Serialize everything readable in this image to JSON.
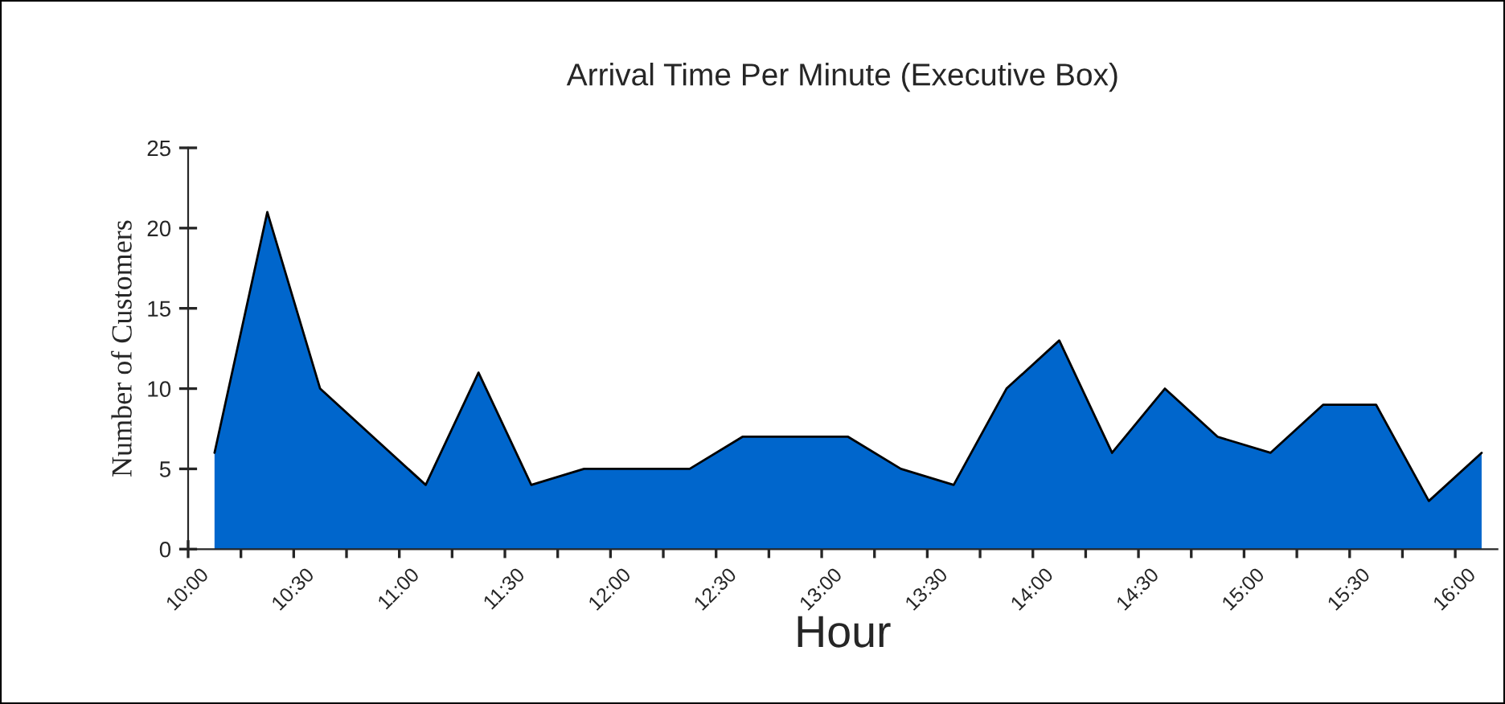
{
  "chart_data": {
    "type": "area",
    "title": "Arrival Time Per Minute (Executive Box)",
    "xlabel": "Hour",
    "ylabel": "Number of Customers",
    "x": [
      10.125,
      10.375,
      10.625,
      10.875,
      11.125,
      11.375,
      11.625,
      11.875,
      12.125,
      12.375,
      12.625,
      12.875,
      13.125,
      13.375,
      13.625,
      13.875,
      14.125,
      14.375,
      14.625,
      14.875,
      15.125,
      15.375,
      15.625,
      15.875,
      16.125
    ],
    "series": [
      {
        "color": "#0066cc",
        "values": [
          6,
          21,
          10,
          7,
          4,
          11,
          4,
          5,
          5,
          5,
          7,
          7,
          7,
          5,
          4,
          10,
          13,
          6,
          10,
          7,
          6,
          9,
          9,
          3,
          6
        ]
      }
    ],
    "xlim": [
      10,
      16.2
    ],
    "ylim": [
      0,
      25
    ],
    "yticks": [
      0,
      5,
      10,
      15,
      20,
      25
    ],
    "xticks": [
      {
        "value": 10,
        "label": "10:00"
      },
      {
        "value": 10.25,
        "label": null
      },
      {
        "value": 10.5,
        "label": "10:30"
      },
      {
        "value": 10.75,
        "label": null
      },
      {
        "value": 11,
        "label": "11:00"
      },
      {
        "value": 11.25,
        "label": null
      },
      {
        "value": 11.5,
        "label": "11:30"
      },
      {
        "value": 11.75,
        "label": null
      },
      {
        "value": 12,
        "label": "12:00"
      },
      {
        "value": 12.25,
        "label": null
      },
      {
        "value": 12.5,
        "label": "12:30"
      },
      {
        "value": 12.75,
        "label": null
      },
      {
        "value": 13,
        "label": "13:00"
      },
      {
        "value": 13.25,
        "label": null
      },
      {
        "value": 13.5,
        "label": "13:30"
      },
      {
        "value": 13.75,
        "label": null
      },
      {
        "value": 14,
        "label": "14:00"
      },
      {
        "value": 14.25,
        "label": null
      },
      {
        "value": 14.5,
        "label": "14:30"
      },
      {
        "value": 14.75,
        "label": null
      },
      {
        "value": 15,
        "label": "15:00"
      },
      {
        "value": 15.25,
        "label": null
      },
      {
        "value": 15.5,
        "label": "15:30"
      },
      {
        "value": 15.75,
        "label": null
      },
      {
        "value": 16,
        "label": "16:00"
      }
    ],
    "grid": false,
    "legend": false
  }
}
